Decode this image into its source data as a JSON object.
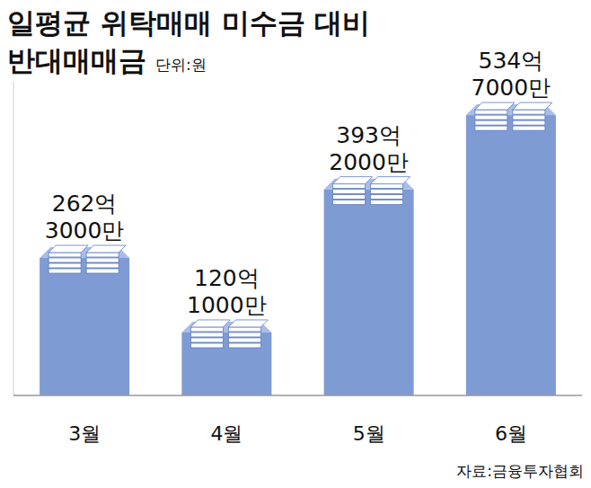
{
  "chart_data": {
    "type": "bar",
    "title": [
      "일평균 위탁매매 미수금 대비",
      "반대매매금"
    ],
    "subtitle": "단위:원",
    "source": "자료:금융투자협회",
    "categories": [
      "3월",
      "4월",
      "5월",
      "6월"
    ],
    "values": [
      262.3,
      120.1,
      393.2,
      534.7
    ],
    "value_labels": [
      "262억 3000만",
      "120억 1000만",
      "393억 2000만",
      "534억 7000만"
    ],
    "color": "#7f9bd3",
    "ylim": [
      0,
      600
    ],
    "data_labels": true,
    "tick_labels": "x",
    "grid": false
  }
}
